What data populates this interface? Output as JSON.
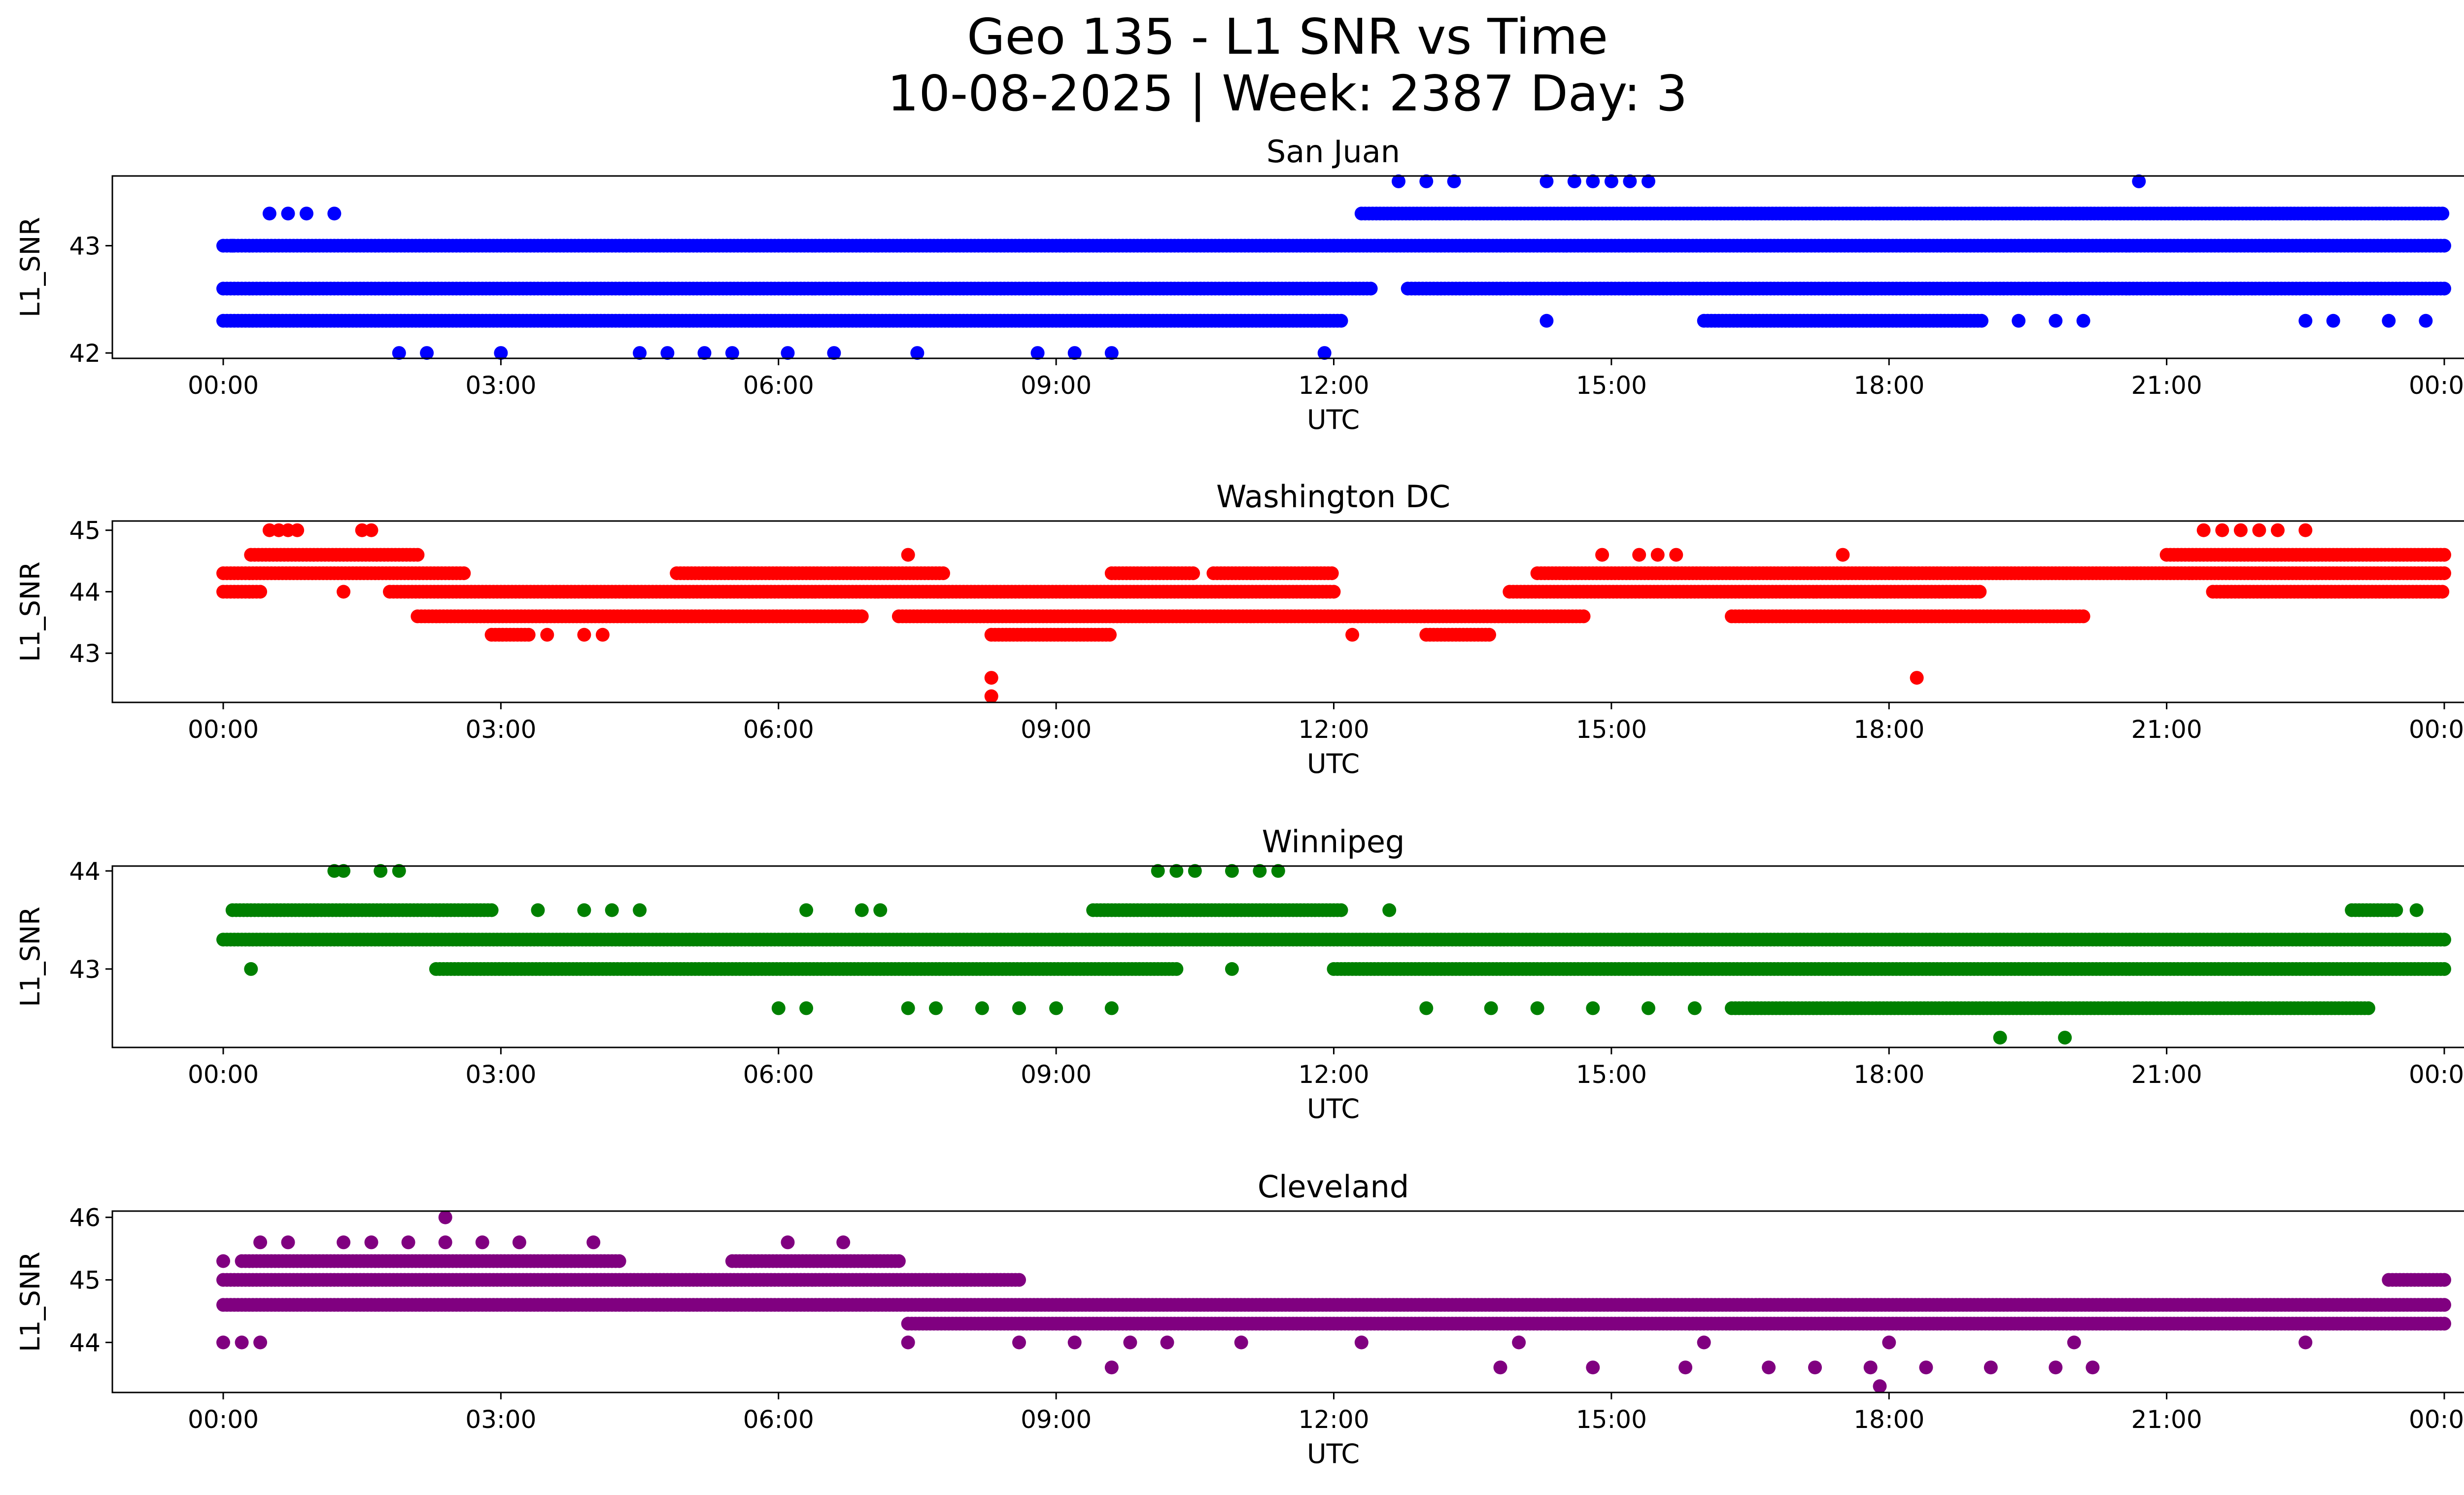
{
  "title_line1": "Geo 135 - L1 SNR vs Time",
  "title_line2": "10-08-2025 | Week: 2387 Day: 3",
  "chart_data": [
    {
      "type": "scatter",
      "title": "San Juan",
      "xlabel": "UTC",
      "ylabel": "L1_SNR",
      "color": "#0000ff",
      "xlim": [
        0,
        24
      ],
      "ylim": [
        41.95,
        43.65
      ],
      "xticks": [
        "00:00",
        "03:00",
        "06:00",
        "09:00",
        "12:00",
        "15:00",
        "18:00",
        "21:00",
        "00:00"
      ],
      "yticks": [
        42,
        43
      ],
      "grid": false,
      "series": [
        {
          "y": 43.0,
          "segments": [
            [
              0.0,
              12.0
            ],
            [
              12.0,
              24.0
            ]
          ]
        },
        {
          "y": 42.6,
          "segments": [
            [
              0.0,
              12.4
            ],
            [
              12.8,
              24.0
            ]
          ]
        },
        {
          "y": 42.3,
          "segments": [
            [
              0.0,
              12.1
            ],
            [
              16.0,
              19.0
            ]
          ]
        },
        {
          "y": 43.3,
          "segments": [
            [
              12.3,
              24.0
            ]
          ]
        }
      ],
      "points": [
        {
          "x": 0.1,
          "y": 43.0
        },
        {
          "x": 0.5,
          "y": 43.3
        },
        {
          "x": 0.7,
          "y": 43.3
        },
        {
          "x": 0.9,
          "y": 43.3
        },
        {
          "x": 1.2,
          "y": 43.3
        },
        {
          "x": 1.9,
          "y": 42.0
        },
        {
          "x": 2.2,
          "y": 42.0
        },
        {
          "x": 3.0,
          "y": 42.0
        },
        {
          "x": 4.5,
          "y": 42.0
        },
        {
          "x": 4.8,
          "y": 42.0
        },
        {
          "x": 5.2,
          "y": 42.0
        },
        {
          "x": 5.5,
          "y": 42.0
        },
        {
          "x": 6.1,
          "y": 42.0
        },
        {
          "x": 6.6,
          "y": 42.0
        },
        {
          "x": 7.5,
          "y": 42.0
        },
        {
          "x": 8.8,
          "y": 42.0
        },
        {
          "x": 9.2,
          "y": 42.0
        },
        {
          "x": 9.6,
          "y": 42.0
        },
        {
          "x": 11.9,
          "y": 42.0
        },
        {
          "x": 12.7,
          "y": 43.6
        },
        {
          "x": 13.0,
          "y": 43.6
        },
        {
          "x": 13.3,
          "y": 43.6
        },
        {
          "x": 14.3,
          "y": 43.6
        },
        {
          "x": 14.6,
          "y": 43.6
        },
        {
          "x": 14.8,
          "y": 43.6
        },
        {
          "x": 15.0,
          "y": 43.6
        },
        {
          "x": 15.2,
          "y": 43.6
        },
        {
          "x": 15.4,
          "y": 43.6
        },
        {
          "x": 20.7,
          "y": 43.6
        },
        {
          "x": 14.3,
          "y": 42.3
        },
        {
          "x": 19.4,
          "y": 42.3
        },
        {
          "x": 19.8,
          "y": 42.3
        },
        {
          "x": 20.1,
          "y": 42.3
        },
        {
          "x": 22.5,
          "y": 42.3
        },
        {
          "x": 22.8,
          "y": 42.3
        },
        {
          "x": 23.4,
          "y": 42.3
        },
        {
          "x": 23.8,
          "y": 42.3
        }
      ]
    },
    {
      "type": "scatter",
      "title": "Washington DC",
      "xlabel": "UTC",
      "ylabel": "L1_SNR",
      "color": "#ff0000",
      "xlim": [
        0,
        24
      ],
      "ylim": [
        42.2,
        45.15
      ],
      "xticks": [
        "00:00",
        "03:00",
        "06:00",
        "09:00",
        "12:00",
        "15:00",
        "18:00",
        "21:00",
        "00:00"
      ],
      "yticks": [
        43,
        44,
        45
      ],
      "grid": false,
      "series": [
        {
          "y": 44.3,
          "segments": [
            [
              0.0,
              2.6
            ],
            [
              4.9,
              7.8
            ],
            [
              9.6,
              10.5
            ],
            [
              10.7,
              12.0
            ],
            [
              14.2,
              24.0
            ]
          ]
        },
        {
          "y": 44.0,
          "segments": [
            [
              0.0,
              0.4
            ],
            [
              1.8,
              12.0
            ],
            [
              13.9,
              19.0
            ],
            [
              21.5,
              24.0
            ]
          ]
        },
        {
          "y": 43.6,
          "segments": [
            [
              2.1,
              6.9
            ],
            [
              7.3,
              14.7
            ],
            [
              16.3,
              20.1
            ]
          ]
        },
        {
          "y": 43.3,
          "segments": [
            [
              2.9,
              3.3
            ],
            [
              8.3,
              9.6
            ],
            [
              13.0,
              13.7
            ]
          ]
        },
        {
          "y": 44.6,
          "segments": [
            [
              0.3,
              2.1
            ],
            [
              21.0,
              24.0
            ]
          ]
        }
      ],
      "points": [
        {
          "x": 0.5,
          "y": 45.0
        },
        {
          "x": 0.6,
          "y": 45.0
        },
        {
          "x": 0.7,
          "y": 45.0
        },
        {
          "x": 0.8,
          "y": 45.0
        },
        {
          "x": 1.5,
          "y": 45.0
        },
        {
          "x": 1.6,
          "y": 45.0
        },
        {
          "x": 21.4,
          "y": 45.0
        },
        {
          "x": 21.6,
          "y": 45.0
        },
        {
          "x": 21.8,
          "y": 45.0
        },
        {
          "x": 22.0,
          "y": 45.0
        },
        {
          "x": 22.2,
          "y": 45.0
        },
        {
          "x": 22.5,
          "y": 45.0
        },
        {
          "x": 7.4,
          "y": 44.6
        },
        {
          "x": 14.9,
          "y": 44.6
        },
        {
          "x": 15.3,
          "y": 44.6
        },
        {
          "x": 15.5,
          "y": 44.6
        },
        {
          "x": 15.7,
          "y": 44.6
        },
        {
          "x": 17.5,
          "y": 44.6
        },
        {
          "x": 1.3,
          "y": 44.0
        },
        {
          "x": 3.5,
          "y": 43.3
        },
        {
          "x": 3.9,
          "y": 43.3
        },
        {
          "x": 4.1,
          "y": 43.3
        },
        {
          "x": 12.2,
          "y": 43.3
        },
        {
          "x": 8.3,
          "y": 42.6
        },
        {
          "x": 8.3,
          "y": 42.3
        },
        {
          "x": 18.3,
          "y": 42.6
        }
      ]
    },
    {
      "type": "scatter",
      "title": "Winnipeg",
      "xlabel": "UTC",
      "ylabel": "L1_SNR",
      "color": "#008000",
      "xlim": [
        0,
        24
      ],
      "ylim": [
        42.2,
        44.05
      ],
      "xticks": [
        "00:00",
        "03:00",
        "06:00",
        "09:00",
        "12:00",
        "15:00",
        "18:00",
        "21:00",
        "00:00"
      ],
      "yticks": [
        43,
        44
      ],
      "grid": false,
      "series": [
        {
          "y": 43.3,
          "segments": [
            [
              0.0,
              24.0
            ]
          ]
        },
        {
          "y": 43.0,
          "segments": [
            [
              2.3,
              10.3
            ],
            [
              12.0,
              24.0
            ]
          ]
        },
        {
          "y": 43.6,
          "segments": [
            [
              0.1,
              2.9
            ],
            [
              9.4,
              12.1
            ],
            [
              23.0,
              23.5
            ]
          ]
        },
        {
          "y": 42.6,
          "segments": [
            [
              16.3,
              23.2
            ]
          ]
        }
      ],
      "points": [
        {
          "x": 0.3,
          "y": 43.0
        },
        {
          "x": 10.9,
          "y": 43.0
        },
        {
          "x": 1.2,
          "y": 44.0
        },
        {
          "x": 1.3,
          "y": 44.0
        },
        {
          "x": 1.7,
          "y": 44.0
        },
        {
          "x": 1.9,
          "y": 44.0
        },
        {
          "x": 10.1,
          "y": 44.0
        },
        {
          "x": 10.3,
          "y": 44.0
        },
        {
          "x": 10.5,
          "y": 44.0
        },
        {
          "x": 10.9,
          "y": 44.0
        },
        {
          "x": 11.2,
          "y": 44.0
        },
        {
          "x": 11.4,
          "y": 44.0
        },
        {
          "x": 3.4,
          "y": 43.6
        },
        {
          "x": 3.9,
          "y": 43.6
        },
        {
          "x": 4.2,
          "y": 43.6
        },
        {
          "x": 4.5,
          "y": 43.6
        },
        {
          "x": 6.3,
          "y": 43.6
        },
        {
          "x": 6.9,
          "y": 43.6
        },
        {
          "x": 7.1,
          "y": 43.6
        },
        {
          "x": 12.6,
          "y": 43.6
        },
        {
          "x": 23.7,
          "y": 43.6
        },
        {
          "x": 6.0,
          "y": 42.6
        },
        {
          "x": 6.3,
          "y": 42.6
        },
        {
          "x": 7.4,
          "y": 42.6
        },
        {
          "x": 7.7,
          "y": 42.6
        },
        {
          "x": 8.2,
          "y": 42.6
        },
        {
          "x": 8.6,
          "y": 42.6
        },
        {
          "x": 9.0,
          "y": 42.6
        },
        {
          "x": 9.6,
          "y": 42.6
        },
        {
          "x": 13.0,
          "y": 42.6
        },
        {
          "x": 13.7,
          "y": 42.6
        },
        {
          "x": 14.2,
          "y": 42.6
        },
        {
          "x": 14.8,
          "y": 42.6
        },
        {
          "x": 15.4,
          "y": 42.6
        },
        {
          "x": 15.9,
          "y": 42.6
        },
        {
          "x": 19.2,
          "y": 42.3
        },
        {
          "x": 19.9,
          "y": 42.3
        }
      ]
    },
    {
      "type": "scatter",
      "title": "Cleveland",
      "xlabel": "UTC",
      "ylabel": "L1_SNR",
      "color": "#800080",
      "xlim": [
        0,
        24
      ],
      "ylim": [
        43.2,
        46.1
      ],
      "xticks": [
        "00:00",
        "03:00",
        "06:00",
        "09:00",
        "12:00",
        "15:00",
        "18:00",
        "21:00",
        "00:00"
      ],
      "yticks": [
        44,
        45,
        46
      ],
      "grid": false,
      "series": [
        {
          "y": 44.6,
          "segments": [
            [
              0.0,
              24.0
            ]
          ]
        },
        {
          "y": 44.3,
          "segments": [
            [
              7.4,
              24.0
            ]
          ]
        },
        {
          "y": 45.0,
          "segments": [
            [
              0.0,
              8.6
            ],
            [
              23.4,
              24.0
            ]
          ]
        },
        {
          "y": 45.3,
          "segments": [
            [
              0.2,
              4.3
            ],
            [
              5.5,
              7.3
            ]
          ]
        }
      ],
      "points": [
        {
          "x": 0.0,
          "y": 44.0
        },
        {
          "x": 0.2,
          "y": 44.0
        },
        {
          "x": 0.4,
          "y": 44.0
        },
        {
          "x": 7.4,
          "y": 44.0
        },
        {
          "x": 8.6,
          "y": 44.0
        },
        {
          "x": 9.2,
          "y": 44.0
        },
        {
          "x": 9.8,
          "y": 44.0
        },
        {
          "x": 10.2,
          "y": 44.0
        },
        {
          "x": 11.0,
          "y": 44.0
        },
        {
          "x": 12.3,
          "y": 44.0
        },
        {
          "x": 14.0,
          "y": 44.0
        },
        {
          "x": 16.0,
          "y": 44.0
        },
        {
          "x": 18.0,
          "y": 44.0
        },
        {
          "x": 20.0,
          "y": 44.0
        },
        {
          "x": 22.5,
          "y": 44.0
        },
        {
          "x": 0.0,
          "y": 45.3
        },
        {
          "x": 0.4,
          "y": 45.6
        },
        {
          "x": 0.7,
          "y": 45.6
        },
        {
          "x": 1.3,
          "y": 45.6
        },
        {
          "x": 1.6,
          "y": 45.6
        },
        {
          "x": 2.0,
          "y": 45.6
        },
        {
          "x": 2.4,
          "y": 45.6
        },
        {
          "x": 2.8,
          "y": 45.6
        },
        {
          "x": 3.2,
          "y": 45.6
        },
        {
          "x": 4.0,
          "y": 45.6
        },
        {
          "x": 6.1,
          "y": 45.6
        },
        {
          "x": 6.7,
          "y": 45.6
        },
        {
          "x": 2.4,
          "y": 46.0
        },
        {
          "x": 9.6,
          "y": 43.6
        },
        {
          "x": 13.8,
          "y": 43.6
        },
        {
          "x": 14.8,
          "y": 43.6
        },
        {
          "x": 15.8,
          "y": 43.6
        },
        {
          "x": 16.7,
          "y": 43.6
        },
        {
          "x": 17.2,
          "y": 43.6
        },
        {
          "x": 17.8,
          "y": 43.6
        },
        {
          "x": 18.4,
          "y": 43.6
        },
        {
          "x": 19.1,
          "y": 43.6
        },
        {
          "x": 19.8,
          "y": 43.6
        },
        {
          "x": 20.2,
          "y": 43.6
        },
        {
          "x": 17.9,
          "y": 43.3
        }
      ]
    }
  ]
}
